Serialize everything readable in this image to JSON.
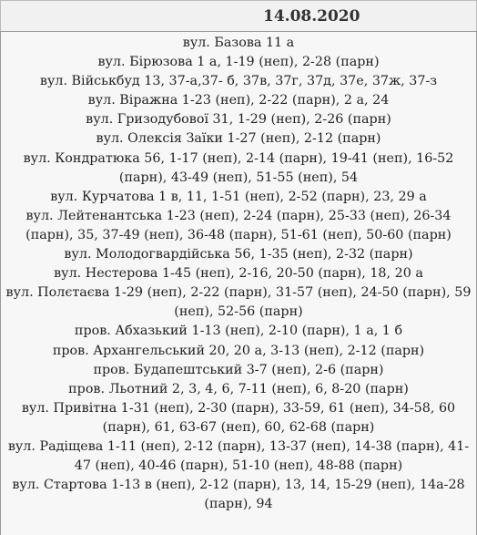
{
  "header": {
    "date": "14.08.2020"
  },
  "entries": [
    "вул. Базова 11 а",
    "вул. Бірюзова 1 а, 1-19 (неп), 2-28 (парн)",
    "вул. Військбуд 13, 37-а,37- б, 37в, 37г, 37д, 37е, 37ж, 37-з",
    "вул. Віражна 1-23 (неп), 2-22 (парн), 2 а, 24",
    "вул. Гризодубової 31, 1-29 (неп), 2-26 (парн)",
    "вул. Олексія Заїки 1-27 (неп), 2-12 (парн)",
    "вул. Кондратюка 56, 1-17 (неп), 2-14 (парн), 19-41 (неп), 16-52 (парн), 43-49 (неп), 51-55 (неп), 54",
    "вул. Курчатова 1 в, 11, 1-51 (неп), 2-52 (парн), 23, 29 а",
    "вул. Лейтенантська 1-23 (неп), 2-24 (парн), 25-33 (неп), 26-34 (парн), 35, 37-49 (неп), 36-48 (парн), 51-61 (неп), 50-60 (парн)",
    "вул. Молодогвардійська 56, 1-35 (неп), 2-32 (парн)",
    "вул. Нестерова 1-45 (неп), 2-16, 20-50 (парн), 18, 20 а",
    "вул. Полєтаєва 1-29 (неп), 2-22 (парн), 31-57 (неп), 24-50 (парн), 59 (неп), 52-56 (парн)",
    "пров. Абхазький 1-13 (неп), 2-10 (парн), 1 а, 1 б",
    "пров. Архангельський 20, 20 а, 3-13 (неп), 2-12 (парн)",
    "пров. Будапештський 3-7 (неп), 2-6 (парн)",
    "пров. Льотний 2, 3, 4, 6, 7-11 (неп), 6, 8-20 (парн)",
    "вул. Привітна 1-31 (неп), 2-30 (парн), 33-59, 61 (неп), 34-58, 60 (парн), 61, 63-67 (неп), 60, 62-68 (парн)",
    "вул. Радіщева 1-11 (неп), 2-12 (парн), 13-37 (неп), 14-38 (парн), 41-47 (неп), 40-46 (парн), 51-10 (неп), 48-88 (парн)",
    "вул. Стартова 1-13 в (неп), 2-12 (парн), 13, 14, 15-29 (неп), 14а-28 (парн), 94"
  ]
}
